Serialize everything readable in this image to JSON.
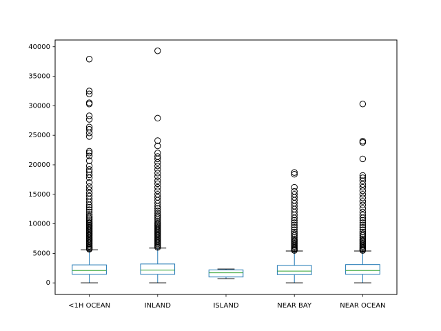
{
  "chart_data": {
    "type": "box",
    "title": "",
    "xlabel": "",
    "ylabel": "",
    "categories": [
      "<1H OCEAN",
      "INLAND",
      "ISLAND",
      "NEAR BAY",
      "NEAR OCEAN"
    ],
    "ylim": [
      -1960,
      41140
    ],
    "yticks": [
      0,
      5000,
      10000,
      15000,
      20000,
      25000,
      30000,
      35000,
      40000
    ],
    "grid": false,
    "colors": {
      "box": "#1f77b4",
      "whisker": "#1f77b4",
      "cap": "#000000",
      "median": "#2ca02c",
      "flier": "#000000",
      "axes": "#000000"
    },
    "boxes": [
      {
        "category": "<1H OCEAN",
        "whislo": 8,
        "q1": 1450,
        "median": 2100,
        "q3": 3050,
        "whishi": 5600,
        "fliers": [
          5700,
          5850,
          6000,
          6200,
          6400,
          6600,
          6800,
          7000,
          7200,
          7400,
          7600,
          7800,
          8000,
          8200,
          8400,
          8600,
          8800,
          9000,
          9200,
          9400,
          9600,
          9800,
          10000,
          10200,
          10400,
          10700,
          11000,
          11300,
          11600,
          12000,
          12400,
          12800,
          13200,
          13700,
          14200,
          14700,
          15200,
          15800,
          16300,
          17000,
          17800,
          18300,
          18800,
          19200,
          19800,
          20700,
          21500,
          22000,
          22300,
          24800,
          25400,
          26000,
          26400,
          27700,
          28300,
          30300,
          30500,
          32000,
          32500,
          37900
        ]
      },
      {
        "category": "INLAND",
        "whislo": 6,
        "q1": 1450,
        "median": 2150,
        "q3": 3200,
        "whishi": 5900,
        "fliers": [
          6000,
          6200,
          6400,
          6600,
          6800,
          7000,
          7200,
          7400,
          7600,
          7800,
          8000,
          8200,
          8400,
          8600,
          8800,
          9000,
          9200,
          9400,
          9600,
          9800,
          10000,
          10200,
          10500,
          10800,
          11100,
          11400,
          11800,
          12200,
          12600,
          13000,
          13500,
          14000,
          14500,
          15000,
          15600,
          16200,
          16800,
          17300,
          18000,
          18600,
          19200,
          19800,
          20400,
          21000,
          21400,
          22000,
          23200,
          24100,
          27900,
          39300
        ]
      },
      {
        "category": "ISLAND",
        "whislo": 716,
        "q1": 1000,
        "median": 1700,
        "q3": 2200,
        "whishi": 2350,
        "fliers": []
      },
      {
        "category": "NEAR BAY",
        "whislo": 8,
        "q1": 1400,
        "median": 2000,
        "q3": 2950,
        "whishi": 5400,
        "fliers": [
          5500,
          5650,
          5800,
          6000,
          6200,
          6400,
          6600,
          6800,
          7000,
          7200,
          7400,
          7700,
          8000,
          8300,
          8600,
          9000,
          9400,
          9800,
          10200,
          10600,
          11000,
          11500,
          12000,
          12500,
          13000,
          13500,
          14000,
          14500,
          15000,
          15500,
          16200,
          18400,
          18700
        ]
      },
      {
        "category": "NEAR OCEAN",
        "whislo": 15,
        "q1": 1450,
        "median": 2100,
        "q3": 3100,
        "whishi": 5400,
        "fliers": [
          5500,
          5650,
          5800,
          6000,
          6200,
          6400,
          6600,
          6800,
          7000,
          7200,
          7400,
          7700,
          8000,
          8300,
          8600,
          9000,
          9400,
          9800,
          10200,
          10600,
          11000,
          11500,
          12000,
          12600,
          13200,
          13800,
          14400,
          15000,
          15600,
          16200,
          16700,
          17300,
          17800,
          18200,
          21000,
          23800,
          24000,
          30300
        ]
      }
    ]
  }
}
